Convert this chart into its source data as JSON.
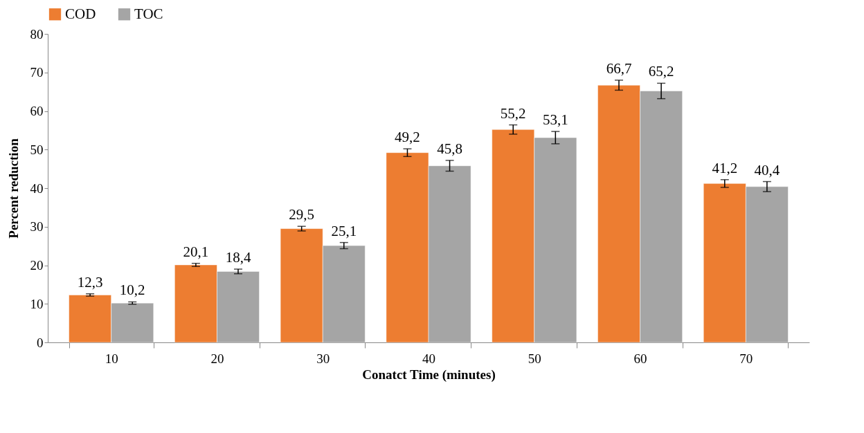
{
  "chart_data": {
    "type": "bar",
    "xlabel": "Conatct Time (minutes)",
    "ylabel": "Percent  reduction",
    "categories": [
      "10",
      "20",
      "30",
      "40",
      "50",
      "60",
      "70"
    ],
    "series": [
      {
        "name": "COD",
        "color": "#ed7d31",
        "values": [
          12.3,
          20.1,
          29.5,
          49.2,
          55.2,
          66.7,
          41.2
        ],
        "errors": [
          0.3,
          0.4,
          0.6,
          1.0,
          1.2,
          1.3,
          1.0
        ],
        "value_labels": [
          "12,3",
          "20,1",
          "29,5",
          "49,2",
          "55,2",
          "66,7",
          "41,2"
        ]
      },
      {
        "name": "TOC",
        "color": "#a5a5a5",
        "values": [
          10.2,
          18.4,
          25.1,
          45.8,
          53.1,
          65.2,
          40.4
        ],
        "errors": [
          0.3,
          0.6,
          0.8,
          1.4,
          1.6,
          2.0,
          1.3
        ],
        "value_labels": [
          "10,2",
          "18,4",
          "25,1",
          "45,8",
          "53,1",
          "65,2",
          "40,4"
        ]
      }
    ],
    "ylim": [
      0,
      80
    ],
    "yticks": [
      0,
      10,
      20,
      30,
      40,
      50,
      60,
      70,
      80
    ],
    "grid": false,
    "legend": "top"
  }
}
